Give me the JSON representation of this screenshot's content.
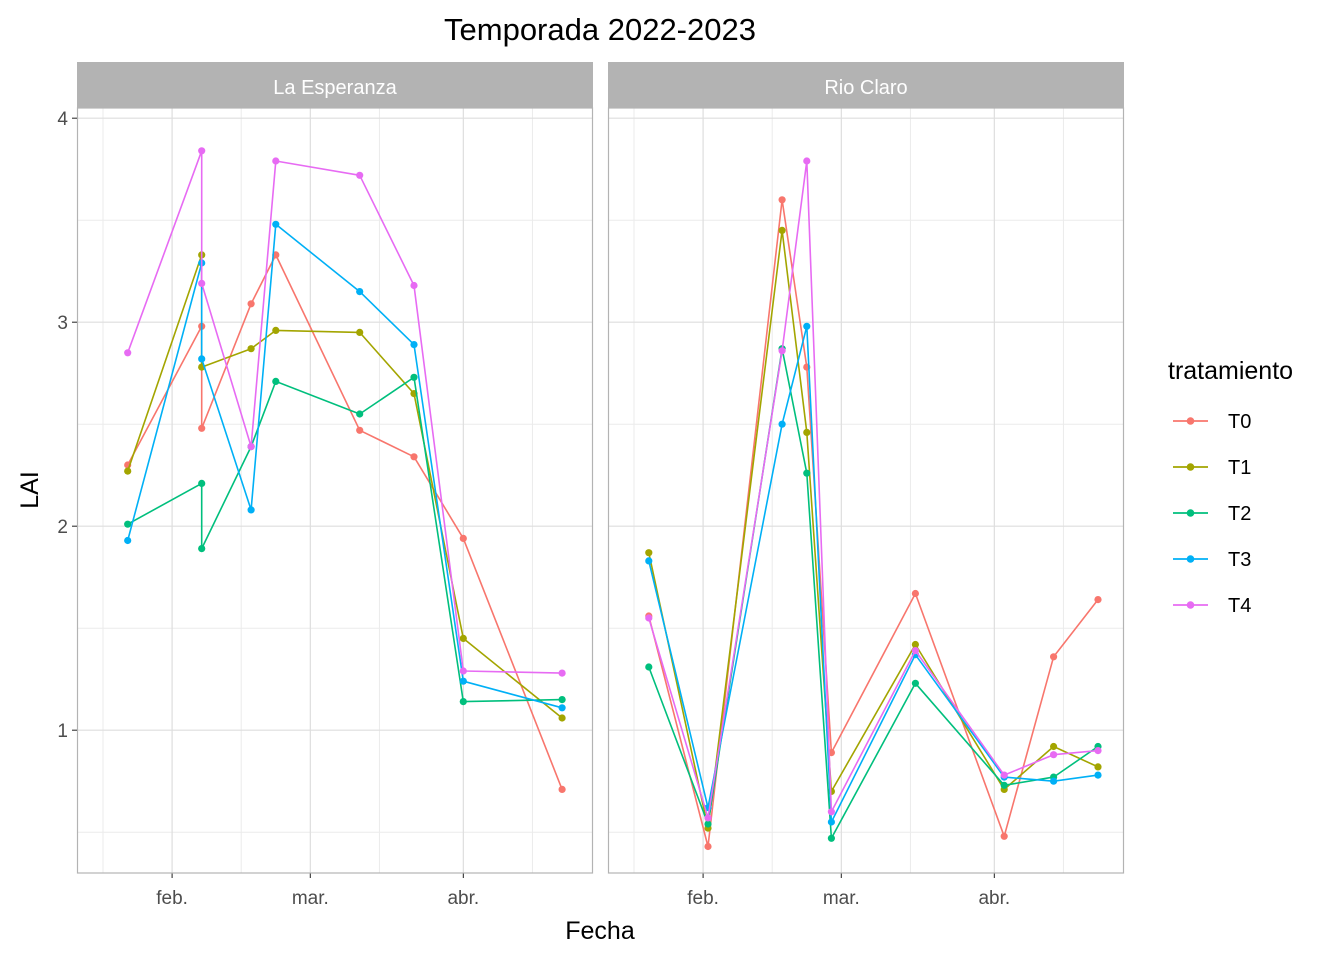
{
  "chart_data": {
    "type": "line",
    "title": "Temporada 2022-2023",
    "xlabel": "Fecha",
    "ylabel": "LAI",
    "x_unit": "date",
    "ylim": [
      0.3,
      4.05
    ],
    "y_ticks": [
      1,
      2,
      3,
      4
    ],
    "grid": true,
    "legend": {
      "title": "tratamiento",
      "position": "right"
    },
    "colors": {
      "T0": "#F8766D",
      "T1": "#A3A500",
      "T2": "#00BF7D",
      "T3": "#00B0F6",
      "T4": "#E76BF3"
    },
    "panels": [
      {
        "name": "La Esperanza",
        "xlim": [
          "2023-01-18",
          "2023-04-22"
        ],
        "x_ticks": [
          {
            "label": "feb.",
            "date": "2023-02-01"
          },
          {
            "label": "mar.",
            "date": "2023-03-01"
          },
          {
            "label": "abr.",
            "date": "2023-04-01"
          }
        ],
        "x_minor": [
          "2023-01-18",
          "2023-02-15",
          "2023-03-15",
          "2023-04-15"
        ],
        "series": [
          {
            "name": "T0",
            "points": [
              {
                "x": "2023-01-23",
                "y": 2.3
              },
              {
                "x": "2023-02-07",
                "y": 2.98
              },
              {
                "x": "2023-02-07",
                "y": 2.48
              },
              {
                "x": "2023-02-17",
                "y": 3.09
              },
              {
                "x": "2023-02-22",
                "y": 3.33
              },
              {
                "x": "2023-03-11",
                "y": 2.47
              },
              {
                "x": "2023-03-22",
                "y": 2.34
              },
              {
                "x": "2023-04-01",
                "y": 1.94
              },
              {
                "x": "2023-04-21",
                "y": 0.71
              }
            ]
          },
          {
            "name": "T1",
            "points": [
              {
                "x": "2023-01-23",
                "y": 2.27
              },
              {
                "x": "2023-02-07",
                "y": 3.33
              },
              {
                "x": "2023-02-07",
                "y": 2.78
              },
              {
                "x": "2023-02-17",
                "y": 2.87
              },
              {
                "x": "2023-02-22",
                "y": 2.96
              },
              {
                "x": "2023-03-11",
                "y": 2.95
              },
              {
                "x": "2023-03-22",
                "y": 2.65
              },
              {
                "x": "2023-04-01",
                "y": 1.45
              },
              {
                "x": "2023-04-21",
                "y": 1.06
              }
            ]
          },
          {
            "name": "T2",
            "points": [
              {
                "x": "2023-01-23",
                "y": 2.01
              },
              {
                "x": "2023-02-07",
                "y": 2.21
              },
              {
                "x": "2023-02-07",
                "y": 1.89
              },
              {
                "x": "2023-02-17",
                "y": 2.39
              },
              {
                "x": "2023-02-22",
                "y": 2.71
              },
              {
                "x": "2023-03-11",
                "y": 2.55
              },
              {
                "x": "2023-03-22",
                "y": 2.73
              },
              {
                "x": "2023-04-01",
                "y": 1.14
              },
              {
                "x": "2023-04-21",
                "y": 1.15
              }
            ]
          },
          {
            "name": "T3",
            "points": [
              {
                "x": "2023-01-23",
                "y": 1.93
              },
              {
                "x": "2023-02-07",
                "y": 3.29
              },
              {
                "x": "2023-02-07",
                "y": 2.82
              },
              {
                "x": "2023-02-17",
                "y": 2.08
              },
              {
                "x": "2023-02-22",
                "y": 3.48
              },
              {
                "x": "2023-03-11",
                "y": 3.15
              },
              {
                "x": "2023-03-22",
                "y": 2.89
              },
              {
                "x": "2023-04-01",
                "y": 1.24
              },
              {
                "x": "2023-04-21",
                "y": 1.11
              }
            ]
          },
          {
            "name": "T4",
            "points": [
              {
                "x": "2023-01-23",
                "y": 2.85
              },
              {
                "x": "2023-02-07",
                "y": 3.84
              },
              {
                "x": "2023-02-07",
                "y": 3.19
              },
              {
                "x": "2023-02-17",
                "y": 2.39
              },
              {
                "x": "2023-02-22",
                "y": 3.79
              },
              {
                "x": "2023-03-11",
                "y": 3.72
              },
              {
                "x": "2023-03-22",
                "y": 3.18
              },
              {
                "x": "2023-04-01",
                "y": 1.29
              },
              {
                "x": "2023-04-21",
                "y": 1.28
              }
            ]
          }
        ]
      },
      {
        "name": "Rio Claro",
        "xlim": [
          "2023-01-18",
          "2023-04-22"
        ],
        "x_ticks": [
          {
            "label": "feb.",
            "date": "2023-02-01"
          },
          {
            "label": "mar.",
            "date": "2023-03-01"
          },
          {
            "label": "abr.",
            "date": "2023-04-01"
          }
        ],
        "x_minor": [
          "2023-01-18",
          "2023-02-15",
          "2023-03-15",
          "2023-04-15"
        ],
        "series": [
          {
            "name": "T0",
            "points": [
              {
                "x": "2023-01-21",
                "y": 1.56
              },
              {
                "x": "2023-02-02",
                "y": 0.43
              },
              {
                "x": "2023-02-17",
                "y": 3.6
              },
              {
                "x": "2023-02-22",
                "y": 2.78
              },
              {
                "x": "2023-02-27",
                "y": 0.89
              },
              {
                "x": "2023-03-16",
                "y": 1.67
              },
              {
                "x": "2023-04-03",
                "y": 0.48
              },
              {
                "x": "2023-04-13",
                "y": 1.36
              },
              {
                "x": "2023-04-22",
                "y": 1.64
              }
            ]
          },
          {
            "name": "T1",
            "points": [
              {
                "x": "2023-01-21",
                "y": 1.87
              },
              {
                "x": "2023-02-02",
                "y": 0.52
              },
              {
                "x": "2023-02-17",
                "y": 3.45
              },
              {
                "x": "2023-02-22",
                "y": 2.46
              },
              {
                "x": "2023-02-27",
                "y": 0.7
              },
              {
                "x": "2023-03-16",
                "y": 1.42
              },
              {
                "x": "2023-04-03",
                "y": 0.71
              },
              {
                "x": "2023-04-13",
                "y": 0.92
              },
              {
                "x": "2023-04-22",
                "y": 0.82
              }
            ]
          },
          {
            "name": "T2",
            "points": [
              {
                "x": "2023-01-21",
                "y": 1.31
              },
              {
                "x": "2023-02-02",
                "y": 0.54
              },
              {
                "x": "2023-02-17",
                "y": 2.87
              },
              {
                "x": "2023-02-22",
                "y": 2.26
              },
              {
                "x": "2023-02-27",
                "y": 0.47
              },
              {
                "x": "2023-03-16",
                "y": 1.23
              },
              {
                "x": "2023-04-03",
                "y": 0.73
              },
              {
                "x": "2023-04-13",
                "y": 0.77
              },
              {
                "x": "2023-04-22",
                "y": 0.92
              }
            ]
          },
          {
            "name": "T3",
            "points": [
              {
                "x": "2023-01-21",
                "y": 1.83
              },
              {
                "x": "2023-02-02",
                "y": 0.62
              },
              {
                "x": "2023-02-17",
                "y": 2.5
              },
              {
                "x": "2023-02-22",
                "y": 2.98
              },
              {
                "x": "2023-02-27",
                "y": 0.55
              },
              {
                "x": "2023-03-16",
                "y": 1.37
              },
              {
                "x": "2023-04-03",
                "y": 0.77
              },
              {
                "x": "2023-04-13",
                "y": 0.75
              },
              {
                "x": "2023-04-22",
                "y": 0.78
              }
            ]
          },
          {
            "name": "T4",
            "points": [
              {
                "x": "2023-01-21",
                "y": 1.55
              },
              {
                "x": "2023-02-02",
                "y": 0.57
              },
              {
                "x": "2023-02-17",
                "y": 2.86
              },
              {
                "x": "2023-02-22",
                "y": 3.79
              },
              {
                "x": "2023-02-27",
                "y": 0.6
              },
              {
                "x": "2023-03-16",
                "y": 1.39
              },
              {
                "x": "2023-04-03",
                "y": 0.78
              },
              {
                "x": "2023-04-13",
                "y": 0.88
              },
              {
                "x": "2023-04-22",
                "y": 0.9
              }
            ]
          }
        ]
      }
    ]
  }
}
